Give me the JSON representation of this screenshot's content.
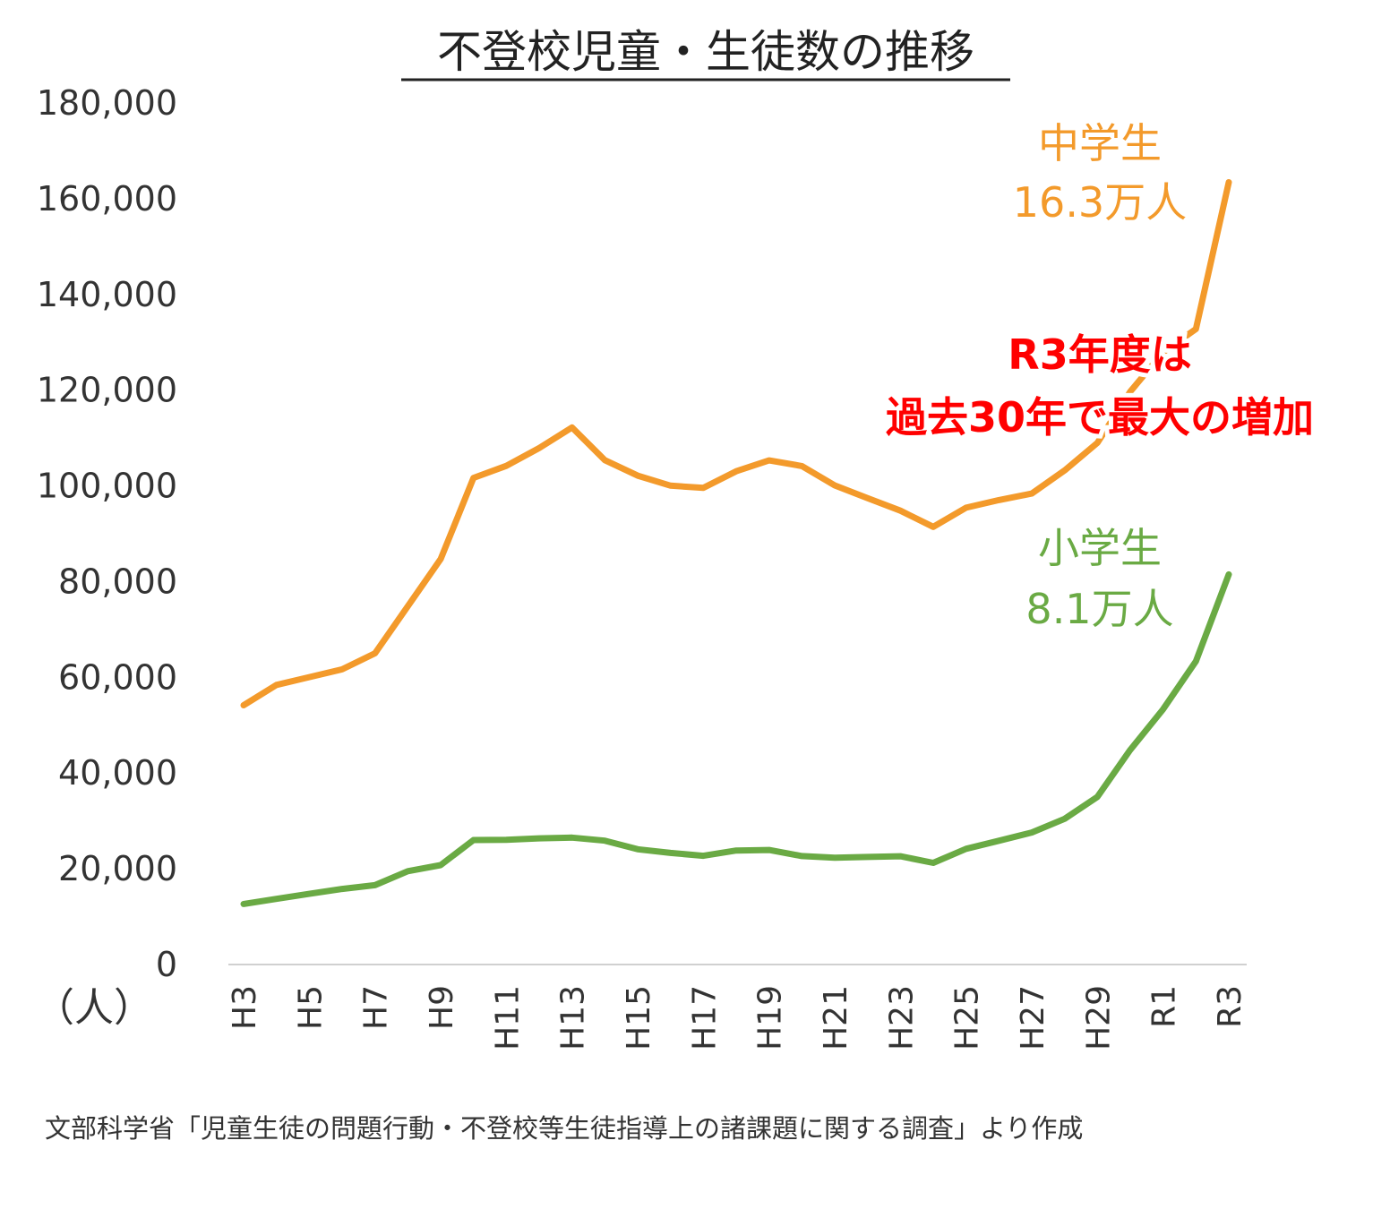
{
  "chart_data": {
    "type": "line",
    "title": "不登校児童・生徒数の推移",
    "y_unit_label": "（人）",
    "ylim": [
      0,
      180000
    ],
    "yticks": [
      "0",
      "20,000",
      "40,000",
      "60,000",
      "80,000",
      "100,000",
      "120,000",
      "140,000",
      "160,000",
      "180,000"
    ],
    "categories": [
      "H3",
      "H4",
      "H5",
      "H6",
      "H7",
      "H8",
      "H9",
      "H10",
      "H11",
      "H12",
      "H13",
      "H14",
      "H15",
      "H16",
      "H17",
      "H18",
      "H19",
      "H20",
      "H21",
      "H22",
      "H23",
      "H24",
      "H25",
      "H26",
      "H27",
      "H28",
      "H29",
      "H30",
      "R1",
      "R2",
      "R3"
    ],
    "x_tick_labels": [
      "H3",
      "H5",
      "H7",
      "H9",
      "H11",
      "H13",
      "H15",
      "H17",
      "H19",
      "H21",
      "H23",
      "H25",
      "H27",
      "H29",
      "R1",
      "R3"
    ],
    "series": [
      {
        "name": "中学生",
        "color": "#f39a2b",
        "label_name": "中学生",
        "label_value": "16.3万人",
        "values": [
          54172,
          58421,
          60039,
          61663,
          65022,
          74853,
          84701,
          101675,
          104180,
          107913,
          112211,
          105383,
          102149,
          100040,
          99578,
          103069,
          105328,
          104153,
          100105,
          97428,
          94836,
          91446,
          95442,
          97033,
          98408,
          103235,
          108999,
          119687,
          127922,
          132777,
          163442
        ]
      },
      {
        "name": "小学生",
        "color": "#6aaa44",
        "label_name": "小学生",
        "label_value": "8.1万人",
        "values": [
          12645,
          13710,
          14769,
          15786,
          16569,
          19498,
          20765,
          26017,
          26047,
          26373,
          26511,
          25869,
          24077,
          23318,
          22709,
          23825,
          23927,
          22652,
          22327,
          22463,
          22622,
          21243,
          24175,
          25864,
          27583,
          30448,
          35032,
          44841,
          53350,
          63350,
          81498
        ]
      }
    ],
    "annotation": {
      "line1": "R3年度は",
      "line2": "過去30年で最大の増加",
      "color": "#ff0000"
    }
  },
  "source_note": "文部科学省「児童生徒の問題行動・不登校等生徒指導上の諸課題に関する調査」より作成"
}
